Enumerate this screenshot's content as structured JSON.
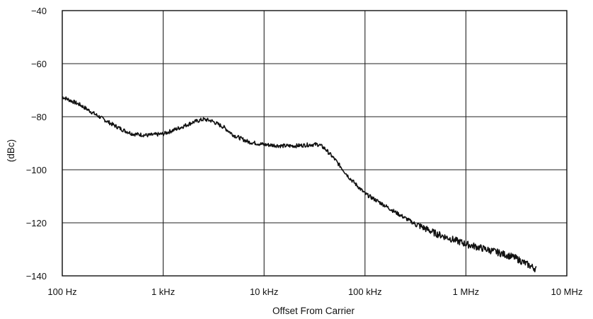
{
  "chart_data": {
    "type": "line",
    "title": "",
    "xlabel": "Offset From Carrier",
    "ylabel": "(dBc)",
    "x_scale": "log",
    "x_unit": "Hz",
    "xlim": [
      100,
      10000000
    ],
    "ylim": [
      -140,
      -40
    ],
    "grid": true,
    "x_ticks": [
      {
        "value": 100,
        "label": "100 Hz"
      },
      {
        "value": 1000,
        "label": "1 kHz"
      },
      {
        "value": 10000,
        "label": "10 kHz"
      },
      {
        "value": 100000,
        "label": "100 kHz"
      },
      {
        "value": 1000000,
        "label": "1 MHz"
      },
      {
        "value": 10000000,
        "label": "10 MHz"
      }
    ],
    "y_ticks": [
      {
        "value": -40,
        "label": "−40"
      },
      {
        "value": -60,
        "label": "−60"
      },
      {
        "value": -80,
        "label": "−80"
      },
      {
        "value": -100,
        "label": "−100"
      },
      {
        "value": -120,
        "label": "−120"
      },
      {
        "value": -140,
        "label": "−140"
      }
    ],
    "series": [
      {
        "x": [
          100,
          150,
          200,
          300,
          400,
          500,
          700,
          1000,
          1500,
          2000,
          2500,
          3000,
          4000,
          5000,
          7000,
          10000,
          15000,
          20000,
          30000,
          35000,
          40000,
          50000,
          70000,
          100000,
          150000,
          200000,
          300000,
          500000,
          1000000,
          2000000,
          3000000,
          5000000
        ],
        "y": [
          -72.5,
          -75.5,
          -78.5,
          -82.5,
          -85,
          -86.5,
          -87,
          -86.5,
          -84,
          -82,
          -81,
          -81.5,
          -84,
          -87,
          -89.5,
          -90.5,
          -91,
          -91,
          -90.5,
          -90.5,
          -92,
          -96,
          -103,
          -109,
          -113,
          -116,
          -120,
          -124,
          -128,
          -131,
          -133,
          -137.5
        ]
      }
    ]
  }
}
